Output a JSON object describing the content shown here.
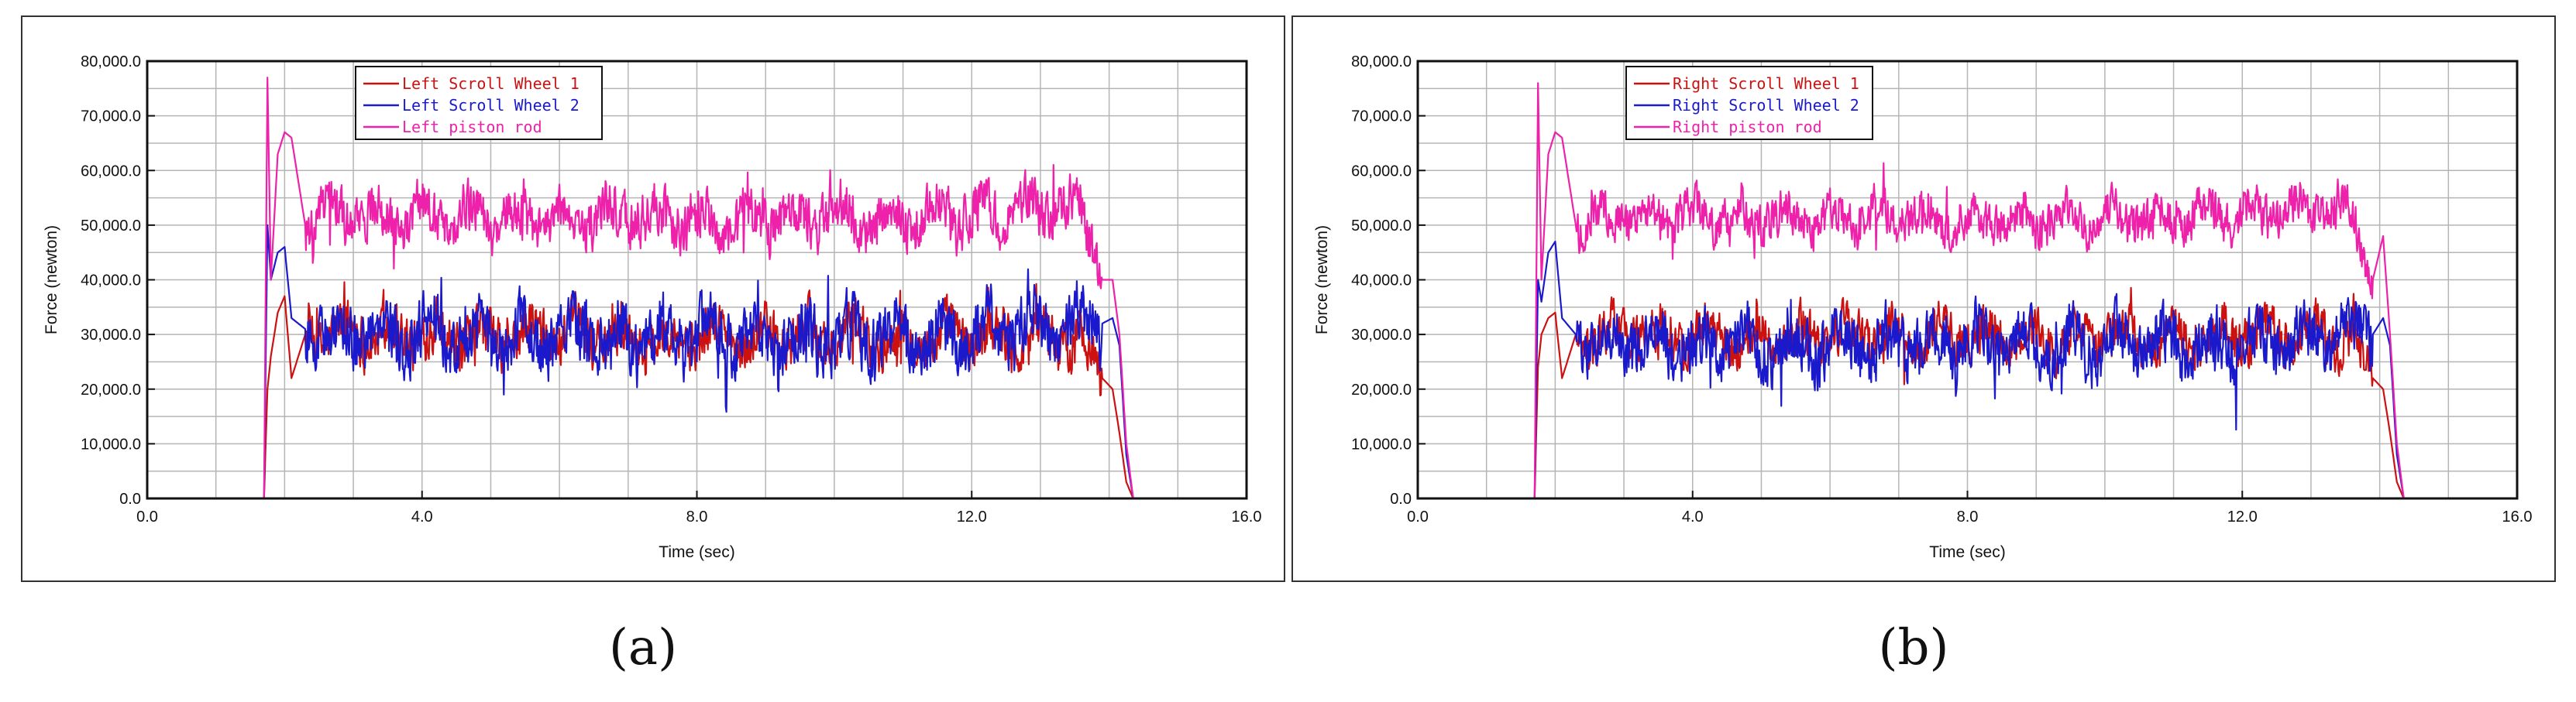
{
  "chart_data": [
    {
      "type": "line",
      "xlabel": "Time (sec)",
      "ylabel": "Force (newton)",
      "xlim": [
        0,
        16
      ],
      "ylim": [
        0,
        80000
      ],
      "x_ticks": [
        "0.0",
        "4.0",
        "8.0",
        "12.0",
        "16.0"
      ],
      "y_ticks": [
        "0.0",
        "10,000.0",
        "20,000.0",
        "30,000.0",
        "40,000.0",
        "50,000.0",
        "60,000.0",
        "70,000.0",
        "80,000.0"
      ],
      "grid": true,
      "legend_position": "top-left",
      "series": [
        {
          "name": "Left Scroll Wheel 1",
          "color": "#cc1111",
          "x": [
            0,
            1.7,
            1.75,
            1.8,
            1.9,
            2.0,
            2.1,
            2.3,
            2.6,
            3.0,
            3.5,
            4.0,
            5.0,
            6.0,
            7.0,
            8.0,
            9.0,
            10.0,
            11.0,
            12.0,
            13.0,
            13.6,
            13.9,
            14.05,
            14.15,
            14.25,
            14.35,
            16.0
          ],
          "y": [
            0,
            0,
            20000,
            26000,
            34000,
            37000,
            22000,
            30000,
            30000,
            31000,
            30000,
            30000,
            29000,
            30000,
            29000,
            30000,
            29000,
            30000,
            29000,
            30000,
            30000,
            29000,
            22000,
            20000,
            12000,
            3000,
            0,
            0
          ],
          "noise": 6500
        },
        {
          "name": "Left Scroll Wheel 2",
          "color": "#1a1acc",
          "x": [
            0,
            1.7,
            1.75,
            1.8,
            1.9,
            2.0,
            2.1,
            2.3,
            2.6,
            3.0,
            3.5,
            4.0,
            5.0,
            6.0,
            7.0,
            8.0,
            9.0,
            10.0,
            11.0,
            12.0,
            13.0,
            13.6,
            13.9,
            14.05,
            14.15,
            14.25,
            14.35,
            16.0
          ],
          "y": [
            0,
            0,
            50000,
            40000,
            45000,
            46000,
            33000,
            31000,
            30000,
            30000,
            29000,
            30000,
            29000,
            30000,
            29000,
            30000,
            29000,
            30000,
            29000,
            30000,
            32000,
            32000,
            32000,
            33000,
            28000,
            8000,
            0,
            0
          ],
          "noise": 8000
        },
        {
          "name": "Left piston rod",
          "color": "#ee22aa",
          "x": [
            0,
            1.7,
            1.75,
            1.8,
            1.9,
            2.0,
            2.1,
            2.3,
            2.6,
            3.0,
            3.5,
            4.0,
            5.0,
            6.0,
            7.0,
            8.0,
            9.0,
            10.0,
            11.0,
            12.0,
            13.0,
            13.6,
            13.9,
            14.05,
            14.15,
            14.25,
            14.35,
            16.0
          ],
          "y": [
            0,
            0,
            77000,
            40000,
            63000,
            67000,
            66000,
            50000,
            52000,
            52000,
            51000,
            52000,
            51000,
            51000,
            52000,
            51000,
            51000,
            52000,
            51000,
            52000,
            53000,
            53000,
            40000,
            40000,
            30000,
            10000,
            0,
            0
          ],
          "noise": 6500
        }
      ]
    },
    {
      "type": "line",
      "xlabel": "Time (sec)",
      "ylabel": "Force (newton)",
      "xlim": [
        0,
        16
      ],
      "ylim": [
        0,
        80000
      ],
      "x_ticks": [
        "0.0",
        "4.0",
        "8.0",
        "12.0",
        "16.0"
      ],
      "y_ticks": [
        "0.0",
        "10,000.0",
        "20,000.0",
        "30,000.0",
        "40,000.0",
        "50,000.0",
        "60,000.0",
        "70,000.0",
        "80,000.0"
      ],
      "grid": true,
      "legend_position": "top-left",
      "series": [
        {
          "name": "Right Scroll Wheel 1",
          "color": "#cc1111",
          "x": [
            0,
            1.7,
            1.75,
            1.8,
            1.9,
            2.0,
            2.1,
            2.3,
            2.6,
            3.0,
            3.5,
            4.0,
            5.0,
            6.0,
            7.0,
            8.0,
            9.0,
            10.0,
            11.0,
            12.0,
            13.0,
            13.6,
            13.9,
            14.05,
            14.15,
            14.25,
            14.35,
            16.0
          ],
          "y": [
            0,
            0,
            24000,
            30000,
            33000,
            34000,
            22000,
            30000,
            30000,
            31000,
            30000,
            30000,
            29000,
            30000,
            29000,
            30000,
            29000,
            30000,
            29000,
            30000,
            30000,
            29000,
            22000,
            20000,
            12000,
            3000,
            0,
            0
          ],
          "noise": 6000
        },
        {
          "name": "Right Scroll Wheel 2",
          "color": "#1a1acc",
          "x": [
            0,
            1.7,
            1.75,
            1.8,
            1.9,
            2.0,
            2.1,
            2.3,
            2.6,
            3.0,
            3.5,
            4.0,
            5.0,
            6.0,
            7.0,
            8.0,
            9.0,
            10.0,
            11.0,
            12.0,
            13.0,
            13.6,
            13.9,
            14.05,
            14.15,
            14.25,
            14.35,
            16.0
          ],
          "y": [
            0,
            0,
            40000,
            36000,
            45000,
            47000,
            33000,
            30000,
            29000,
            29000,
            28000,
            28000,
            28000,
            28000,
            28000,
            28000,
            28000,
            28000,
            28000,
            28000,
            29000,
            30000,
            30000,
            33000,
            28000,
            8000,
            0,
            0
          ],
          "noise": 7500
        },
        {
          "name": "Right piston rod",
          "color": "#ee22aa",
          "x": [
            0,
            1.7,
            1.75,
            1.8,
            1.9,
            2.0,
            2.1,
            2.3,
            2.6,
            3.0,
            3.5,
            4.0,
            5.0,
            6.0,
            7.0,
            8.0,
            9.0,
            10.0,
            11.0,
            12.0,
            13.0,
            13.6,
            13.9,
            14.05,
            14.15,
            14.25,
            14.35,
            16.0
          ],
          "y": [
            0,
            0,
            76000,
            40000,
            63000,
            67000,
            66000,
            50000,
            51000,
            52000,
            51000,
            52000,
            51000,
            51000,
            52000,
            51000,
            51000,
            52000,
            51000,
            52000,
            53000,
            53000,
            40000,
            48000,
            30000,
            10000,
            0,
            0
          ],
          "noise": 5500
        }
      ]
    }
  ],
  "captions": {
    "a": "(a)",
    "b": "(b)"
  }
}
